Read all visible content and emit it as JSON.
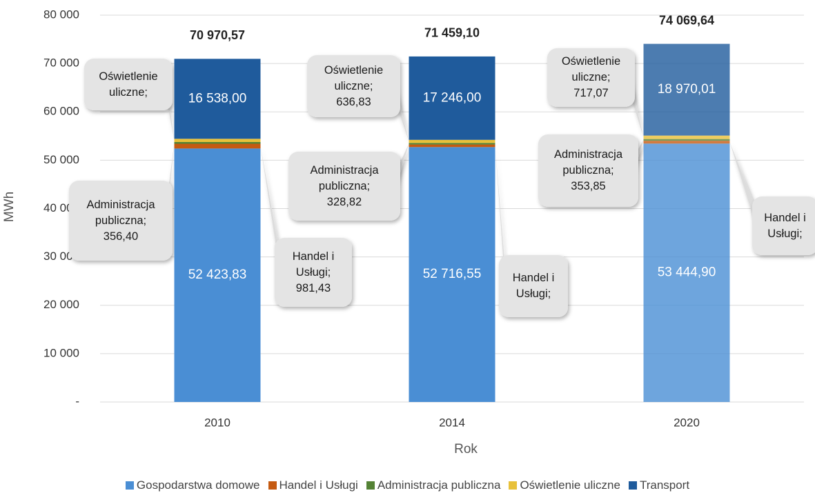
{
  "chart_data": {
    "type": "stacked_bar",
    "categories": [
      "2010",
      "2014",
      "2020"
    ],
    "x_label": "Rok",
    "y_label": "MWh",
    "ylim": [
      0,
      80000
    ],
    "yticks": [
      {
        "value": 0,
        "label": "-"
      },
      {
        "value": 10000,
        "label": "10 000"
      },
      {
        "value": 20000,
        "label": "20 000"
      },
      {
        "value": 30000,
        "label": "30 000"
      },
      {
        "value": 40000,
        "label": "40 000"
      },
      {
        "value": 50000,
        "label": "50 000"
      },
      {
        "value": 60000,
        "label": "60 000"
      },
      {
        "value": 70000,
        "label": "70 000"
      },
      {
        "value": 80000,
        "label": "80 000"
      }
    ],
    "grid": true,
    "legend": "bottom",
    "series": [
      {
        "name": "Gospodarstwa domowe",
        "color": "#4a8ed4",
        "values": [
          52423.83,
          52716.55,
          53444.9
        ],
        "value_labels": [
          "52 423,83",
          "52 716,55",
          "53 444,90"
        ]
      },
      {
        "name": "Handel i Usługi",
        "color": "#c55a11",
        "values": [
          981.43,
          530.9,
          583.81
        ],
        "value_labels": [
          "981,43",
          null,
          null
        ],
        "callout_prefix": "Handel i Usługi;"
      },
      {
        "name": "Administracja publiczna",
        "color": "#548235",
        "values": [
          356.4,
          328.82,
          353.85
        ],
        "value_labels": [
          "356,40",
          "328,82",
          "353,85"
        ],
        "callout_prefix": "Administracja publiczna;"
      },
      {
        "name": "Oświetlenie uliczne",
        "color": "#e8c13a",
        "values": [
          670.91,
          636.83,
          717.07
        ],
        "value_labels": [
          null,
          "636,83",
          "717,07"
        ],
        "callout_prefix": "Oświetlenie uliczne;"
      },
      {
        "name": "Transport",
        "color": "#1f5b9c",
        "values": [
          16538.0,
          17246.0,
          18970.01
        ],
        "value_labels": [
          "16 538,00",
          "17 246,00",
          "18 970,01"
        ]
      }
    ],
    "totals": {
      "values": [
        70970.57,
        71459.1,
        74069.64
      ],
      "value_labels": [
        "70 970,57",
        "71 459,10",
        "74 069,64"
      ]
    }
  }
}
